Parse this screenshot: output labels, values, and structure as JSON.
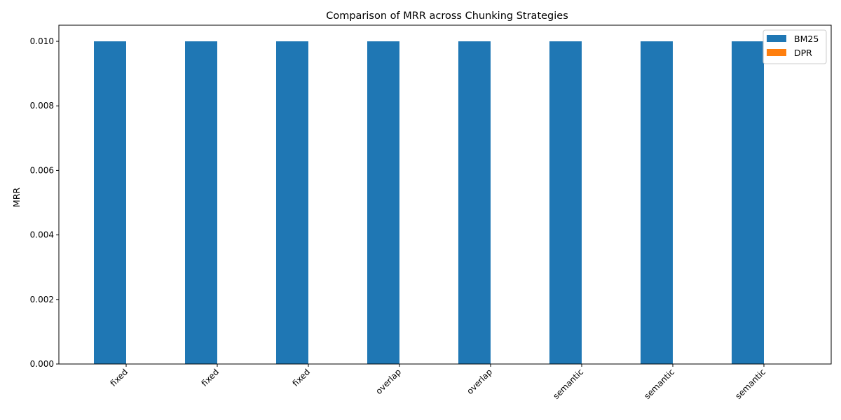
{
  "chart_data": {
    "type": "bar",
    "title": "Comparison of MRR across Chunking Strategies",
    "xlabel": "",
    "ylabel": "MRR",
    "categories": [
      "fixed",
      "fixed",
      "fixed",
      "overlap",
      "overlap",
      "semantic",
      "semantic",
      "semantic"
    ],
    "series": [
      {
        "name": "BM25",
        "color": "#1f77b4",
        "values": [
          0.01,
          0.01,
          0.01,
          0.01,
          0.01,
          0.01,
          0.01,
          0.01
        ]
      },
      {
        "name": "DPR",
        "color": "#ff7f0e",
        "values": [
          0,
          0,
          0,
          0,
          0,
          0,
          0,
          0
        ]
      }
    ],
    "ylim": [
      0,
      0.0105
    ],
    "yticks": [
      "0.000",
      "0.002",
      "0.004",
      "0.006",
      "0.008",
      "0.010"
    ],
    "grid": false,
    "legend": "top-right"
  }
}
